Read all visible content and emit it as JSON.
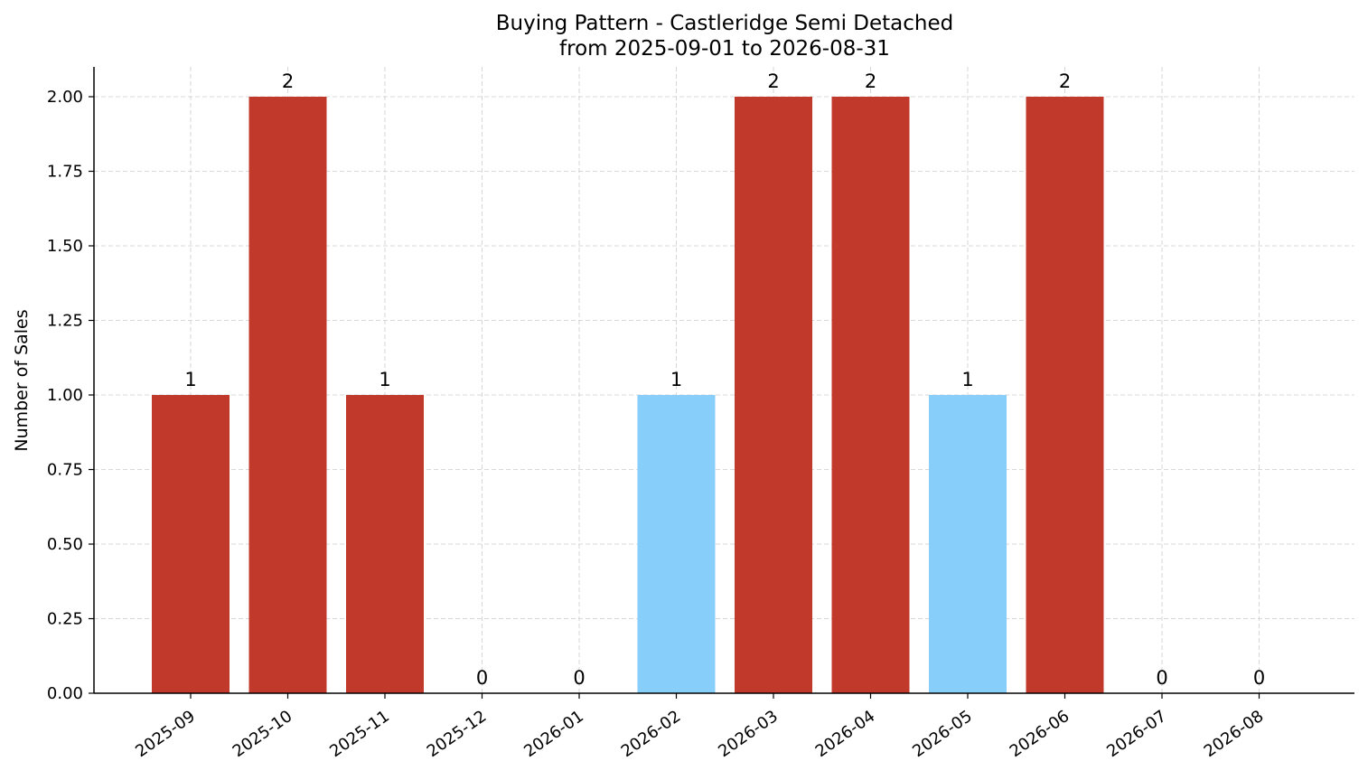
{
  "chart_data": {
    "type": "bar",
    "title": "Buying Pattern - Castleridge Semi Detached",
    "subtitle": "from 2025-09-01 to 2026-08-31",
    "xlabel": "",
    "ylabel": "Number of Sales",
    "ylim": [
      0,
      2.1
    ],
    "yticks": [
      "0.00",
      "0.25",
      "0.50",
      "0.75",
      "1.00",
      "1.25",
      "1.50",
      "1.75",
      "2.00"
    ],
    "ytick_values": [
      0,
      0.25,
      0.5,
      0.75,
      1.0,
      1.25,
      1.5,
      1.75,
      2.0
    ],
    "grid": true,
    "categories": [
      "2025-09",
      "2025-10",
      "2025-11",
      "2025-12",
      "2026-01",
      "2026-02",
      "2026-03",
      "2026-04",
      "2026-05",
      "2026-06",
      "2026-07",
      "2026-08"
    ],
    "values": [
      1,
      2,
      1,
      0,
      0,
      1,
      2,
      2,
      1,
      2,
      0,
      0
    ],
    "bar_colors": [
      "#c0392b",
      "#c0392b",
      "#c0392b",
      "#c0392b",
      "#c0392b",
      "#87cefa",
      "#c0392b",
      "#c0392b",
      "#87cefa",
      "#c0392b",
      "#c0392b",
      "#c0392b"
    ]
  }
}
